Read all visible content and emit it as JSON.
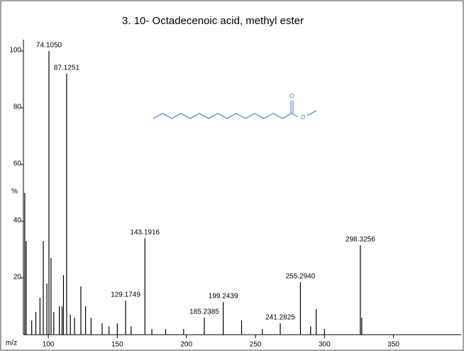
{
  "chart_data": {
    "type": "bar",
    "title": "3. 10- Octadecenoic acid, methyl ester",
    "ylabel": "%",
    "xlabel": "m/z",
    "color": "#000000",
    "xlim": [
      82,
      399
    ],
    "ylim": [
      0,
      104
    ],
    "xticks": [
      100,
      150,
      200,
      250,
      300,
      350
    ],
    "yticks": [
      20,
      40,
      60,
      80,
      100
    ],
    "x": [
      83,
      84,
      88,
      91,
      94,
      96.4,
      99,
      100.5,
      102,
      104,
      108,
      110,
      111,
      113.3,
      116,
      119,
      123.6,
      127,
      131,
      139,
      144,
      150,
      156,
      160,
      170,
      175,
      185,
      198,
      213,
      226.7,
      240,
      255,
      268,
      282.6,
      290,
      294,
      300,
      326,
      327
    ],
    "values": [
      50,
      33,
      5,
      8,
      13,
      33,
      18,
      100,
      27,
      8,
      10,
      10,
      21,
      92,
      7,
      6,
      17,
      10,
      6,
      4,
      3,
      4,
      12,
      3,
      34,
      2,
      2,
      2,
      6,
      11.5,
      5,
      2,
      4,
      18.5,
      3,
      9,
      2,
      31.5,
      6
    ],
    "annotations": [
      {
        "text": "74.1050",
        "x": 100.5,
        "y": 100
      },
      {
        "text": "87.1251",
        "x": 113.3,
        "y": 92
      },
      {
        "text": "129.1749",
        "x": 156,
        "y": 12
      },
      {
        "text": "143.1916",
        "x": 170,
        "y": 34
      },
      {
        "text": "185.2385",
        "x": 213,
        "y": 6
      },
      {
        "text": "199.2439",
        "x": 226.7,
        "y": 11.5
      },
      {
        "text": "241.2825",
        "x": 268,
        "y": 4
      },
      {
        "text": "255.2940",
        "x": 282.6,
        "y": 18.5
      },
      {
        "text": "298.3256",
        "x": 326,
        "y": 31.5
      }
    ]
  },
  "structure": {
    "atoms": [
      "O",
      "O"
    ]
  }
}
